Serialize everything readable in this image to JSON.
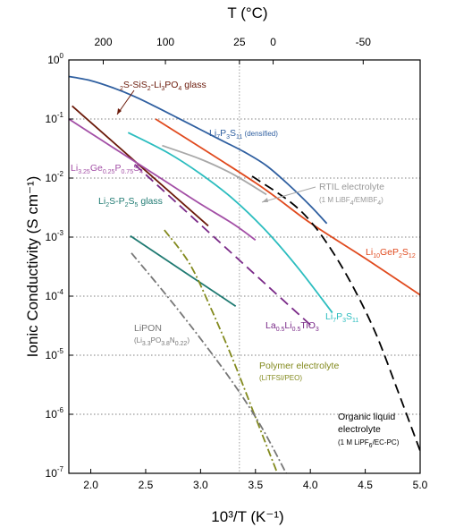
{
  "chart_data": {
    "type": "line",
    "xlabel": "10³/T (K⁻¹)",
    "ylabel": "Ionic Conductivity (S cm⁻¹)",
    "top_axis_label": "T (°C)",
    "xlim": [
      1.8,
      5.0
    ],
    "ylim_log10": [
      -7,
      0
    ],
    "log_y": true,
    "x_ticks": [
      "2.0",
      "2.5",
      "3.0",
      "3.5",
      "4.0",
      "4.5",
      "5.0"
    ],
    "x_tick_values": [
      2.0,
      2.5,
      3.0,
      3.5,
      4.0,
      4.5,
      5.0
    ],
    "y_tick_values": [
      0,
      -1,
      -2,
      -3,
      -4,
      -5,
      -6,
      -7
    ],
    "top_ticks": [
      {
        "label": "200",
        "celsius": 200
      },
      {
        "label": "100",
        "celsius": 100
      },
      {
        "label": "25",
        "celsius": 25
      },
      {
        "label": "0",
        "celsius": 0
      },
      {
        "label": "-50",
        "celsius": -50
      }
    ],
    "reference_line_celsius": 25,
    "gridlines": "horizontal dotted at each decade",
    "series": [
      {
        "name": "Li7P3S11 (densified)",
        "color": "#2f5fa0",
        "dash": "solid",
        "x": [
          1.8,
          2.0,
          2.2,
          2.4,
          2.6,
          2.8,
          3.0,
          3.2,
          3.4,
          3.6,
          3.8,
          4.0,
          4.15
        ],
        "y": [
          -0.28,
          -0.35,
          -0.47,
          -0.62,
          -0.8,
          -0.99,
          -1.18,
          -1.37,
          -1.56,
          -1.79,
          -2.11,
          -2.47,
          -2.77
        ]
      },
      {
        "name": "Li2S-SiS2-Li3PO4 glass",
        "color": "#6b1a0a",
        "dash": "solid",
        "x": [
          1.83,
          3.07
        ],
        "y": [
          -0.78,
          -2.81
        ]
      },
      {
        "name": "Li10GeP2S12",
        "color": "#e04a1e",
        "dash": "solid",
        "x": [
          2.59,
          3.5,
          4.0,
          4.5,
          5.0
        ],
        "y": [
          -1.0,
          -2.08,
          -2.76,
          -3.36,
          -3.98
        ]
      },
      {
        "name": "Organic liquid electrolyte",
        "color": "#000000",
        "dash": "long-dash",
        "x": [
          3.47,
          3.8,
          4.0,
          4.2,
          4.4,
          4.6,
          4.8,
          5.0
        ],
        "y": [
          -1.97,
          -2.38,
          -2.73,
          -3.24,
          -3.88,
          -4.65,
          -5.62,
          -6.62
        ]
      },
      {
        "name": "Li3.25Ge0.25P0.75S4",
        "color": "#a34fa6",
        "dash": "solid",
        "x": [
          1.8,
          2.1,
          2.4,
          2.7,
          3.0,
          3.3,
          3.5
        ],
        "y": [
          -1.0,
          -1.36,
          -1.72,
          -2.08,
          -2.44,
          -2.78,
          -3.05
        ]
      },
      {
        "name": "Li7P3S11",
        "color": "#2cbdbf",
        "dash": "solid",
        "x": [
          2.34,
          2.7,
          3.0,
          3.3,
          3.6,
          3.9,
          4.2
        ],
        "y": [
          -1.23,
          -1.57,
          -1.93,
          -2.36,
          -2.9,
          -3.55,
          -4.28
        ]
      },
      {
        "name": "RTIL electrolyte",
        "color": "#a8a8a8",
        "dash": "solid",
        "x": [
          2.65,
          3.0,
          3.3,
          3.6
        ],
        "y": [
          -1.45,
          -1.68,
          -1.94,
          -2.28
        ]
      },
      {
        "name": "La0.5Li0.5TiO3",
        "color": "#7a2a88",
        "dash": "long-dash",
        "x": [
          2.4,
          2.8,
          3.2,
          3.6,
          4.02
        ],
        "y": [
          -1.77,
          -2.45,
          -3.13,
          -3.81,
          -4.52
        ]
      },
      {
        "name": "Li2S-P2S5 glass",
        "color": "#1f7a72",
        "dash": "solid",
        "x": [
          2.36,
          3.32
        ],
        "y": [
          -2.98,
          -4.17
        ]
      },
      {
        "name": "Polymer electrolyte",
        "color": "#838a1e",
        "dash": "dash-dot",
        "x": [
          2.67,
          2.9,
          3.1,
          3.3,
          3.5,
          3.7
        ],
        "y": [
          -2.88,
          -3.45,
          -4.23,
          -5.1,
          -6.05,
          -7.0
        ]
      },
      {
        "name": "LiPON",
        "color": "#777777",
        "dash": "dash-dot",
        "x": [
          2.37,
          2.7,
          3.0,
          3.3,
          3.55,
          3.78
        ],
        "y": [
          -3.27,
          -4.01,
          -4.72,
          -5.48,
          -6.2,
          -7.0
        ]
      }
    ],
    "annotations": {
      "li2s_sis2": {
        "base": "Li",
        "parts": [
          [
            "2",
            "sub"
          ],
          [
            "S-SiS",
            ""
          ],
          [
            "2",
            "sub"
          ],
          [
            "-Li",
            ""
          ],
          [
            "3",
            "sub"
          ],
          [
            "PO",
            ""
          ],
          [
            "4",
            "sub"
          ],
          [
            " glass",
            ""
          ]
        ]
      },
      "li7p3s11_dens": {
        "parts": [
          [
            "Li",
            ""
          ],
          [
            "7",
            "sub"
          ],
          [
            "P",
            ""
          ],
          [
            "3",
            "sub"
          ],
          [
            "S",
            ""
          ],
          [
            "11",
            "sub"
          ],
          [
            " (densified)",
            "small"
          ]
        ]
      },
      "lgps_like": {
        "parts": [
          [
            "Li",
            ""
          ],
          [
            "3.25",
            "sub"
          ],
          [
            "Ge",
            ""
          ],
          [
            "0.25",
            "sub"
          ],
          [
            "P",
            ""
          ],
          [
            "0.75",
            "sub"
          ],
          [
            "S",
            ""
          ],
          [
            "4",
            "sub"
          ]
        ]
      },
      "rtil_line1": "RTIL electrolyte",
      "rtil_line2": {
        "parts": [
          [
            "(1 M LiBF",
            ""
          ],
          [
            "4",
            "sub"
          ],
          [
            "/EMIBF",
            ""
          ],
          [
            "4",
            "sub"
          ],
          [
            ")",
            ""
          ]
        ]
      },
      "li2s_p2s5": {
        "parts": [
          [
            "Li",
            ""
          ],
          [
            "2",
            "sub"
          ],
          [
            "S-P",
            ""
          ],
          [
            "2",
            "sub"
          ],
          [
            "S",
            ""
          ],
          [
            "5",
            "sub"
          ],
          [
            " glass",
            ""
          ]
        ]
      },
      "lgps": {
        "parts": [
          [
            "Li",
            ""
          ],
          [
            "10",
            "sub"
          ],
          [
            "GeP",
            ""
          ],
          [
            "2",
            "sub"
          ],
          [
            "S",
            ""
          ],
          [
            "12",
            "sub"
          ]
        ]
      },
      "lipon_line1": "LiPON",
      "lipon_line2": {
        "parts": [
          [
            "(Li",
            ""
          ],
          [
            "3.3",
            "sub"
          ],
          [
            "PO",
            ""
          ],
          [
            "3.8",
            "sub"
          ],
          [
            "N",
            ""
          ],
          [
            "0.22",
            "sub"
          ],
          [
            ")",
            ""
          ]
        ]
      },
      "llto": {
        "parts": [
          [
            "La",
            ""
          ],
          [
            "0.5",
            "sub"
          ],
          [
            "Li",
            ""
          ],
          [
            "0.5",
            "sub"
          ],
          [
            "TiO",
            ""
          ],
          [
            "3",
            "sub"
          ]
        ]
      },
      "li7p3s11": {
        "parts": [
          [
            "Li",
            ""
          ],
          [
            "7",
            "sub"
          ],
          [
            "P",
            ""
          ],
          [
            "3",
            "sub"
          ],
          [
            "S",
            ""
          ],
          [
            "11",
            "sub"
          ]
        ]
      },
      "polymer_line1": "Polymer electrolyte",
      "polymer_line2": "(LiTFSI/PEO)",
      "organic_line1": "Organic liquid",
      "organic_line2": "electrolyte",
      "organic_line3": {
        "parts": [
          [
            "(1 M LiPF",
            ""
          ],
          [
            "6",
            "sub"
          ],
          [
            "/EC-PC)",
            ""
          ]
        ]
      }
    }
  }
}
